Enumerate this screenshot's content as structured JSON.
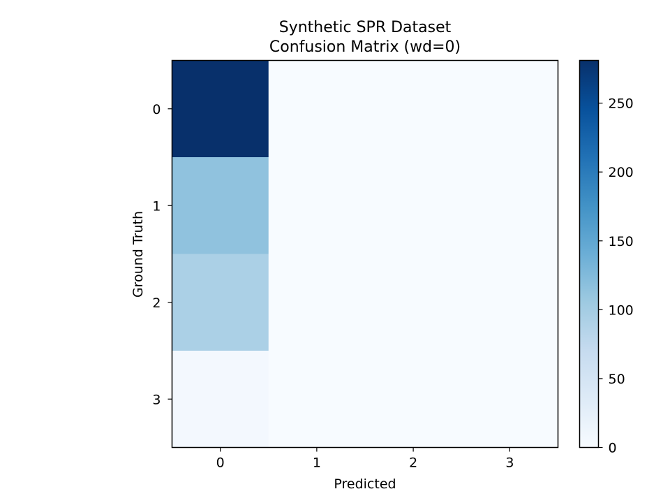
{
  "chart_data": {
    "type": "heatmap",
    "title": "Synthetic SPR Dataset\nConfusion Matrix (wd=0)",
    "title_lines": [
      "Synthetic SPR Dataset",
      "Confusion Matrix (wd=0)"
    ],
    "xlabel": "Predicted",
    "ylabel": "Ground Truth",
    "x_categories": [
      "0",
      "1",
      "2",
      "3"
    ],
    "y_categories": [
      "0",
      "1",
      "2",
      "3"
    ],
    "matrix": [
      [
        281,
        0,
        0,
        0
      ],
      [
        115,
        0,
        0,
        0
      ],
      [
        94,
        0,
        0,
        0
      ],
      [
        6,
        0,
        0,
        0
      ]
    ],
    "colormap": "Blues",
    "vmin": 0,
    "vmax": 281,
    "colorbar_ticks": [
      0,
      50,
      100,
      150,
      200,
      250
    ],
    "colorbar_tick_labels": [
      "0",
      "50",
      "100",
      "150",
      "200",
      "250"
    ],
    "grid": false
  }
}
